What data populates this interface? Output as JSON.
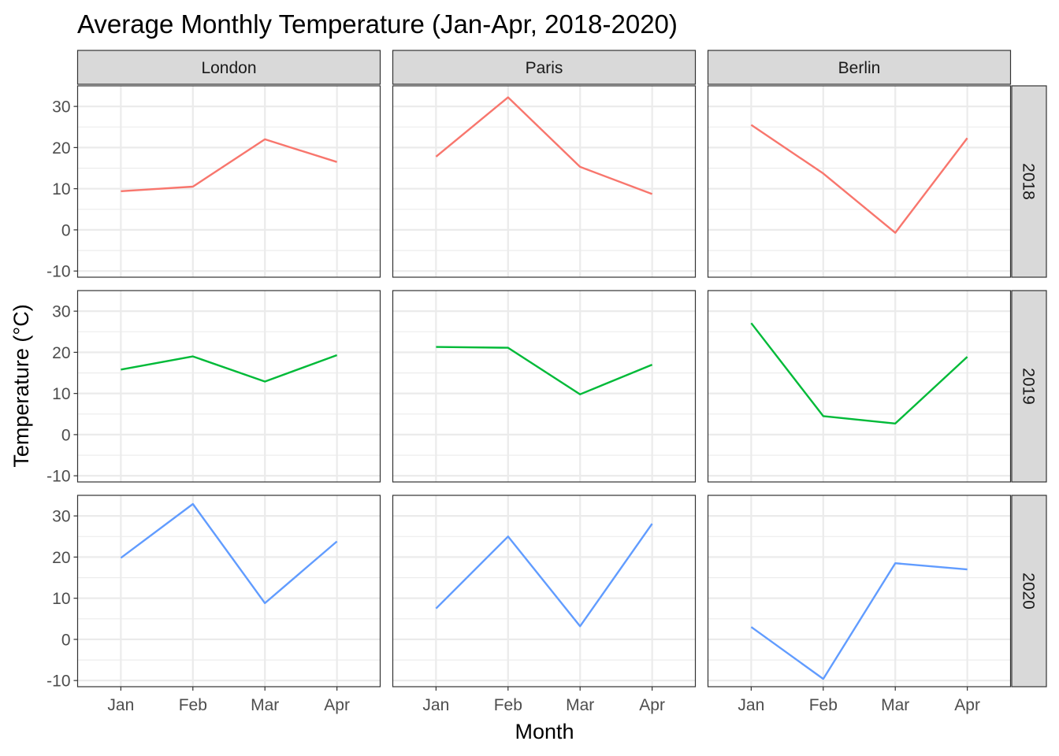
{
  "chart_data": {
    "type": "line",
    "title": "Average Monthly Temperature (Jan-Apr, 2018-2020)",
    "xlabel": "Month",
    "ylabel": "Temperature (°C)",
    "categories": [
      "Jan",
      "Feb",
      "Mar",
      "Apr"
    ],
    "facet_columns": [
      "London",
      "Paris",
      "Berlin"
    ],
    "facet_rows": [
      "2018",
      "2019",
      "2020"
    ],
    "y_ticks": [
      -10,
      0,
      10,
      20,
      30
    ],
    "ylim": [
      -11.5,
      35
    ],
    "grid": true,
    "legend": "none",
    "row_colors": {
      "2018": "#F8766D",
      "2019": "#00BA38",
      "2020": "#619CFF"
    },
    "series": [
      {
        "city": "London",
        "year": "2018",
        "values": [
          9.4,
          10.5,
          22.0,
          16.5
        ]
      },
      {
        "city": "Paris",
        "year": "2018",
        "values": [
          17.8,
          32.2,
          15.3,
          8.7
        ]
      },
      {
        "city": "Berlin",
        "year": "2018",
        "values": [
          25.5,
          13.7,
          -0.7,
          22.3
        ]
      },
      {
        "city": "London",
        "year": "2019",
        "values": [
          15.8,
          19.0,
          12.9,
          19.3
        ]
      },
      {
        "city": "Paris",
        "year": "2019",
        "values": [
          21.3,
          21.1,
          9.8,
          17.0
        ]
      },
      {
        "city": "Berlin",
        "year": "2019",
        "values": [
          27.1,
          4.5,
          2.7,
          18.9
        ]
      },
      {
        "city": "London",
        "year": "2020",
        "values": [
          19.8,
          32.9,
          8.8,
          23.8
        ]
      },
      {
        "city": "Paris",
        "year": "2020",
        "values": [
          7.5,
          25.0,
          3.2,
          28.1
        ]
      },
      {
        "city": "Berlin",
        "year": "2020",
        "values": [
          3.0,
          -9.6,
          18.5,
          17.0
        ]
      }
    ]
  }
}
